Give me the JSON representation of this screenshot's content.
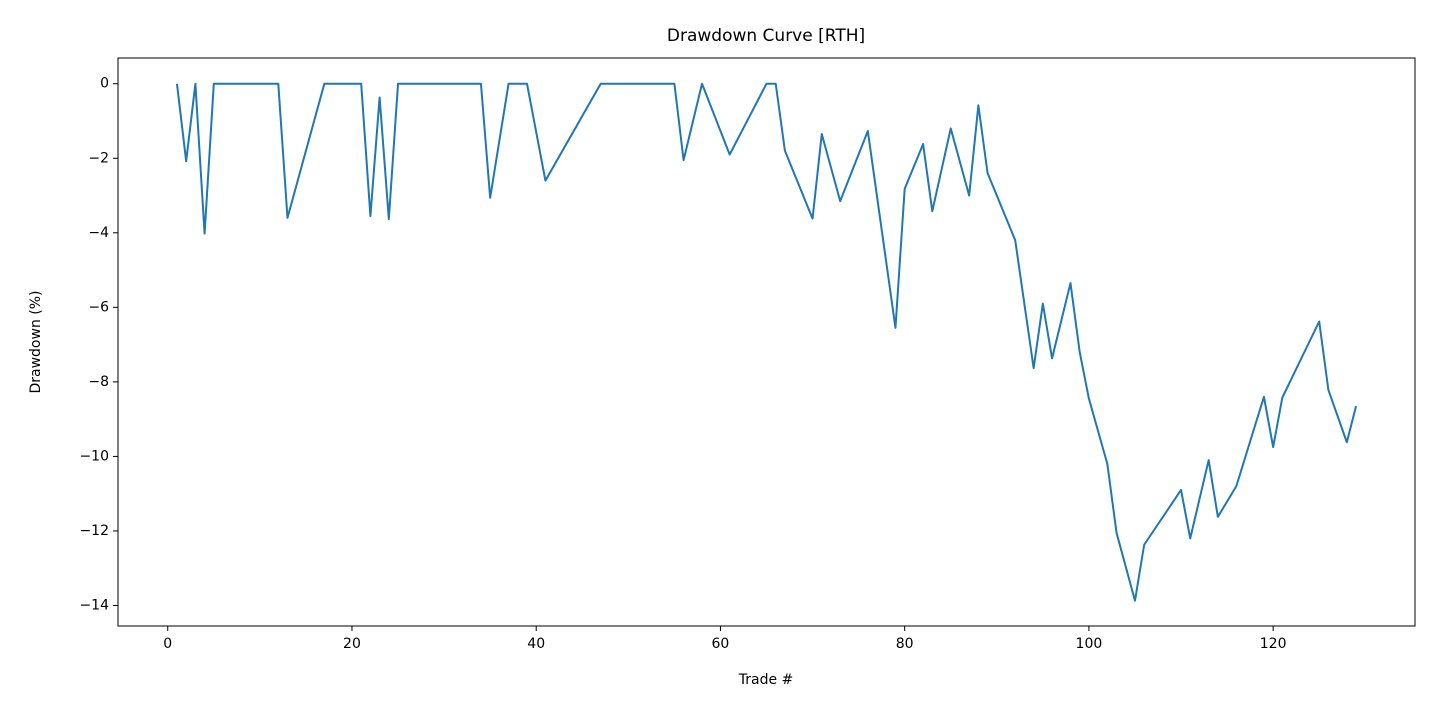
{
  "chart_data": {
    "type": "line",
    "title": "Drawdown Curve [RTH]",
    "x_label": "Trade #",
    "y_label": "Drawdown (%)",
    "x": [
      1,
      2,
      3,
      4,
      5,
      12,
      13,
      17,
      21,
      22,
      23,
      24,
      25,
      34,
      35,
      37,
      39,
      41,
      47,
      55,
      56,
      58,
      61,
      65,
      66,
      67,
      70,
      71,
      73,
      76,
      79,
      80,
      82,
      83,
      85,
      87,
      88,
      89,
      92,
      94,
      95,
      96,
      98,
      99,
      100,
      102,
      103,
      105,
      106,
      110,
      111,
      113,
      114,
      116,
      119,
      120,
      121,
      125,
      126,
      128,
      129
    ],
    "series": [
      {
        "name": "Drawdown",
        "color": "#1f77b4",
        "values": [
          0,
          -2.08,
          0,
          -4.02,
          0,
          0,
          -3.6,
          0,
          0,
          -3.55,
          -0.37,
          -3.63,
          0,
          0,
          -3.06,
          0,
          0,
          -2.6,
          0,
          0,
          -2.05,
          0,
          -1.9,
          0,
          0,
          -1.8,
          -3.62,
          -1.35,
          -3.15,
          -1.27,
          -6.55,
          -2.82,
          -1.62,
          -3.42,
          -1.2,
          -3.0,
          -0.58,
          -2.4,
          -4.2,
          -7.63,
          -5.9,
          -7.37,
          -5.35,
          -7.2,
          -8.45,
          -10.2,
          -12.05,
          -13.87,
          -12.37,
          -10.9,
          -12.2,
          -10.1,
          -11.62,
          -10.8,
          -8.4,
          -9.75,
          -8.42,
          -6.38,
          -8.22,
          -9.62,
          -8.65
        ]
      }
    ],
    "xlim": [
      -5.4,
      135.4
    ],
    "ylim": [
      -14.55,
      0.69
    ],
    "xticks": [
      0,
      20,
      40,
      60,
      80,
      100,
      120
    ],
    "yticks": [
      {
        "value": -14,
        "label": "−14"
      },
      {
        "value": -12,
        "label": "−12"
      },
      {
        "value": -10,
        "label": "−10"
      },
      {
        "value": -8,
        "label": "−8"
      },
      {
        "value": -6,
        "label": "−6"
      },
      {
        "value": -4,
        "label": "−4"
      },
      {
        "value": -2,
        "label": "−2"
      },
      0
    ],
    "grid": false
  }
}
